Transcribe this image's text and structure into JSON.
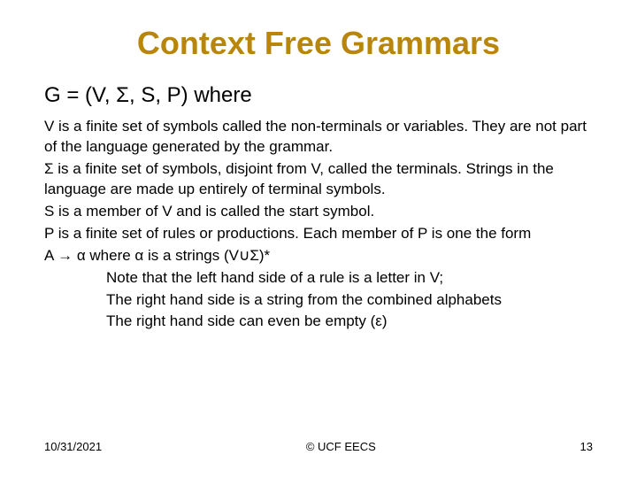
{
  "title": {
    "text": "Context Free Grammars",
    "color": "#b8860b",
    "fontsize": 36
  },
  "definition": {
    "text": "G = (V, Σ, S, P) where",
    "fontsize": 24,
    "color": "#000000"
  },
  "body": {
    "fontsize": 17,
    "color": "#000000",
    "lines": [
      "V is a finite set of symbols called the non-terminals or variables. They are not part of the language generated by the grammar.",
      "Σ is a finite set of symbols, disjoint from V, called the terminals. Strings in the language are made up entirely of terminal symbols.",
      "S is a member of V and is called the start symbol.",
      "P is a finite set of rules or productions. Each member of P is one the form",
      "A → α where α is a strings (V∪Σ)*"
    ],
    "indented": [
      "Note that the left hand side of a rule is a letter in V;",
      "The right hand side is a string from the combined alphabets",
      "The right hand side can even be empty (ε)"
    ]
  },
  "footer": {
    "date": "10/31/2021",
    "copyright": "© UCF EECS",
    "page": "13",
    "fontsize": 13,
    "color": "#000000"
  },
  "background_color": "#ffffff"
}
